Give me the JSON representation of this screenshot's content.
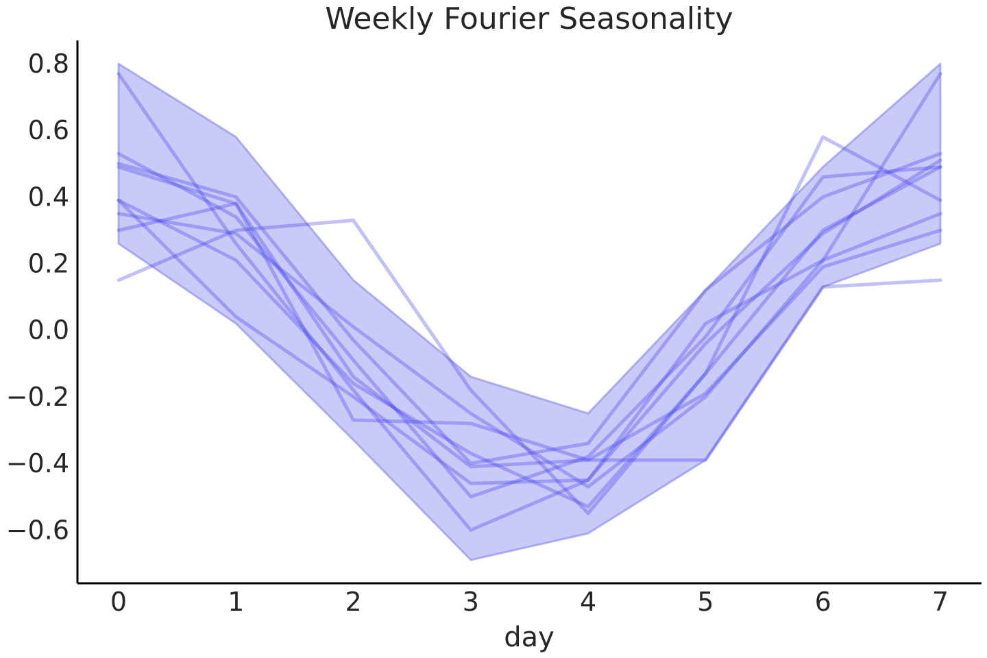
{
  "chart_data": {
    "type": "line",
    "title": "Weekly Fourier Seasonality",
    "xlabel": "day",
    "ylabel": "",
    "xlim": [
      -0.35,
      7.35
    ],
    "ylim": [
      -0.76,
      0.87
    ],
    "grid": false,
    "legend": "none",
    "x": [
      0,
      1,
      2,
      3,
      4,
      5,
      6,
      7
    ],
    "x_ticks": [
      0,
      1,
      2,
      3,
      4,
      5,
      6,
      7
    ],
    "x_tick_labels": [
      "0",
      "1",
      "2",
      "3",
      "4",
      "5",
      "6",
      "7"
    ],
    "y_ticks": [
      0.8,
      0.6,
      0.4,
      0.2,
      0.0,
      -0.2,
      -0.4,
      -0.6
    ],
    "y_tick_labels": [
      "0.8",
      "0.6",
      "0.4",
      "0.2",
      "0.0",
      "−0.2",
      "−0.4",
      "−0.6"
    ],
    "line_color": "#3b3bf0",
    "band_color": "#7b7bf0",
    "band": {
      "upper": [
        0.8,
        0.58,
        0.15,
        -0.14,
        -0.25,
        0.12,
        0.49,
        0.8
      ],
      "lower": [
        0.26,
        0.02,
        -0.33,
        -0.69,
        -0.61,
        -0.39,
        0.13,
        0.26
      ]
    },
    "series": [
      {
        "values": [
          0.77,
          0.26,
          -0.18,
          -0.6,
          -0.45,
          0.02,
          0.21,
          0.77
        ]
      },
      {
        "values": [
          0.15,
          0.3,
          0.33,
          -0.18,
          -0.55,
          -0.13,
          0.58,
          0.39
        ]
      },
      {
        "values": [
          0.53,
          0.34,
          -0.09,
          -0.5,
          -0.38,
          -0.02,
          0.46,
          0.49
        ]
      },
      {
        "values": [
          0.5,
          0.4,
          -0.03,
          -0.4,
          -0.34,
          0.12,
          0.4,
          0.53
        ]
      },
      {
        "values": [
          0.39,
          0.21,
          -0.16,
          -0.37,
          -0.53,
          -0.13,
          0.3,
          0.49
        ]
      },
      {
        "values": [
          0.49,
          0.38,
          -0.27,
          -0.28,
          -0.39,
          -0.39,
          0.13,
          0.15
        ]
      },
      {
        "values": [
          0.35,
          0.29,
          0.01,
          -0.25,
          -0.47,
          -0.2,
          0.21,
          0.35
        ]
      },
      {
        "values": [
          0.3,
          0.38,
          -0.14,
          -0.41,
          -0.39,
          -0.19,
          0.19,
          0.3
        ]
      },
      {
        "values": [
          0.39,
          0.04,
          -0.2,
          -0.46,
          -0.45,
          -0.04,
          0.29,
          0.51
        ]
      }
    ]
  }
}
